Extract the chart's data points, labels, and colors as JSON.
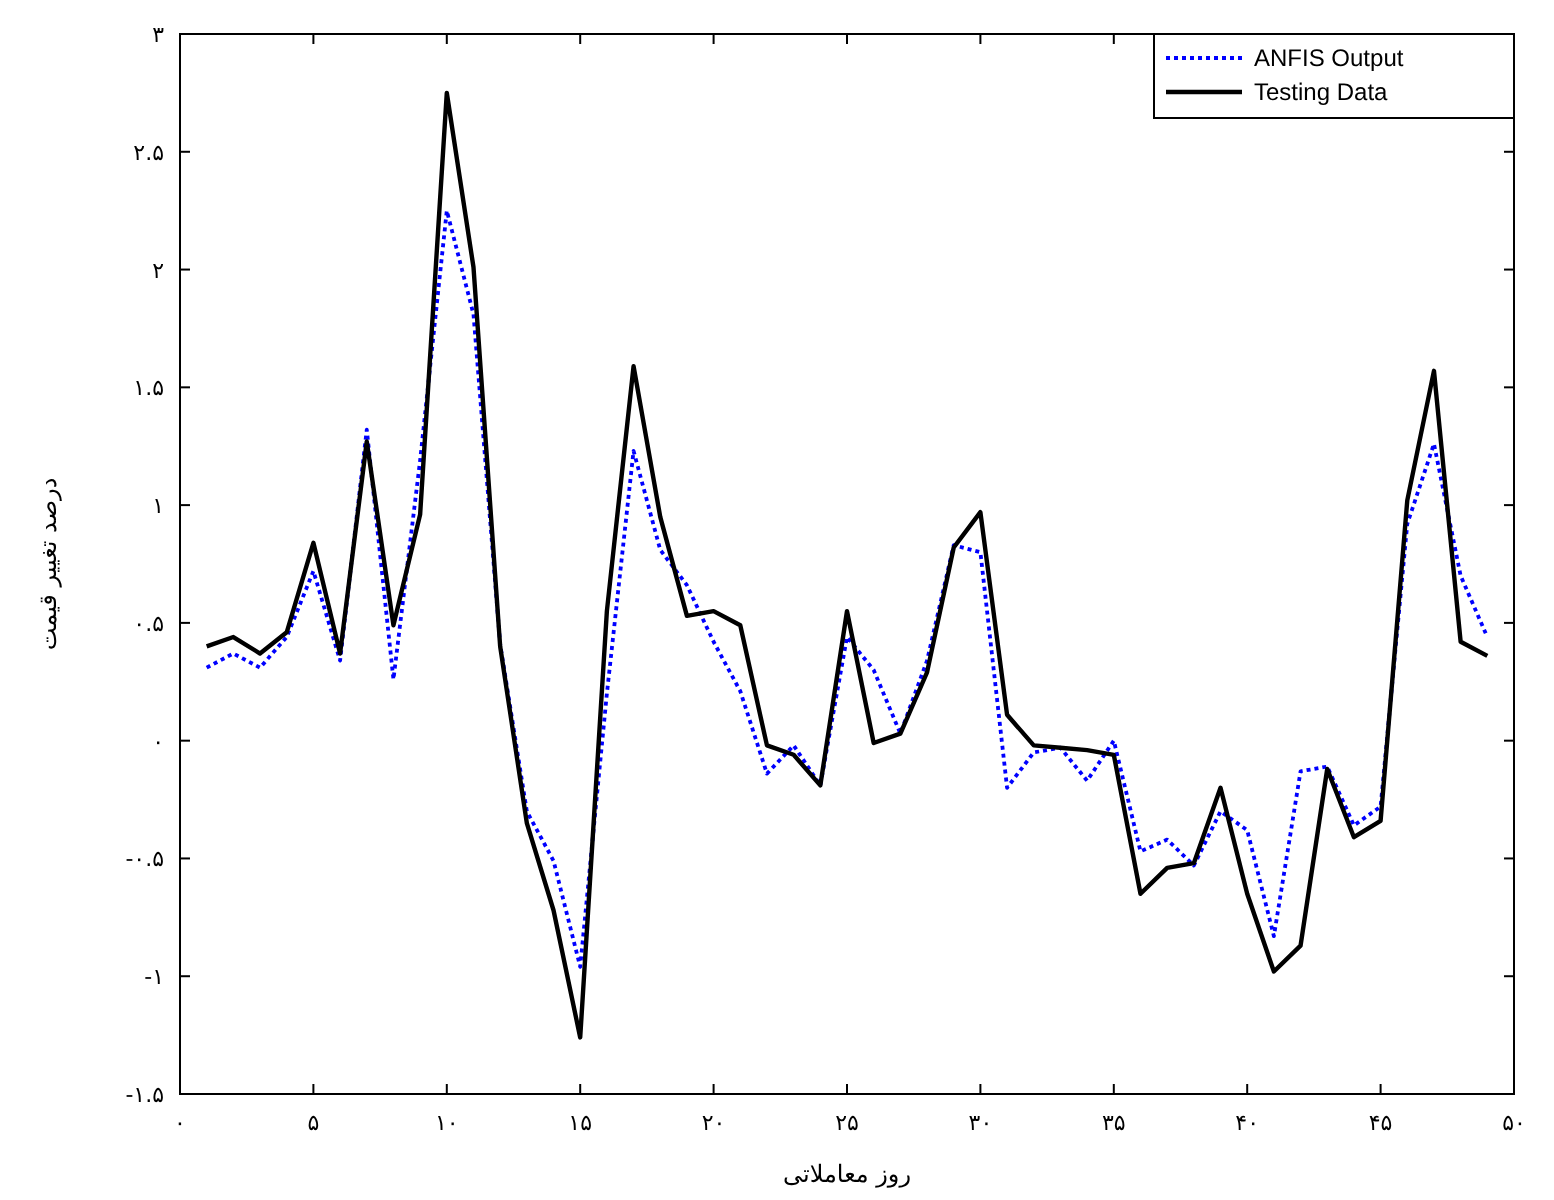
{
  "chart_data": {
    "type": "line",
    "xlabel": "روز معاملاتی",
    "ylabel": "درصد تغییر قیمت",
    "x": [
      1,
      2,
      3,
      4,
      5,
      6,
      7,
      8,
      9,
      10,
      11,
      12,
      13,
      14,
      15,
      16,
      17,
      18,
      19,
      20,
      21,
      22,
      23,
      24,
      25,
      26,
      27,
      28,
      29,
      30,
      31,
      32,
      33,
      34,
      35,
      36,
      37,
      38,
      39,
      40,
      41,
      42,
      43,
      44,
      45,
      46,
      47,
      48,
      49
    ],
    "series": [
      {
        "name": "ANFIS Output",
        "color": "#0000ff",
        "line_style": "dotted",
        "values": [
          0.31,
          0.37,
          0.31,
          0.44,
          0.72,
          0.34,
          1.32,
          0.26,
          1.19,
          2.25,
          1.81,
          0.41,
          -0.3,
          -0.51,
          -0.96,
          0.2,
          1.23,
          0.81,
          0.66,
          0.42,
          0.21,
          -0.14,
          -0.02,
          -0.19,
          0.44,
          0.3,
          0.03,
          0.34,
          0.83,
          0.8,
          -0.2,
          -0.05,
          -0.03,
          -0.17,
          0.0,
          -0.47,
          -0.42,
          -0.53,
          -0.3,
          -0.38,
          -0.83,
          -0.13,
          -0.11,
          -0.36,
          -0.28,
          0.92,
          1.26,
          0.7,
          0.44
        ]
      },
      {
        "name": "Testing Data",
        "color": "#000000",
        "line_style": "solid",
        "values": [
          0.4,
          0.44,
          0.37,
          0.46,
          0.84,
          0.37,
          1.27,
          0.49,
          0.96,
          2.75,
          2.01,
          0.4,
          -0.35,
          -0.72,
          -1.26,
          0.55,
          1.59,
          0.95,
          0.53,
          0.55,
          0.49,
          -0.02,
          -0.06,
          -0.19,
          0.55,
          -0.01,
          0.03,
          0.29,
          0.82,
          0.97,
          0.11,
          -0.02,
          -0.03,
          -0.04,
          -0.06,
          -0.65,
          -0.54,
          -0.52,
          -0.2,
          -0.65,
          -0.98,
          -0.87,
          -0.12,
          -0.41,
          -0.34,
          1.02,
          1.57,
          0.42,
          0.36
        ]
      }
    ],
    "xlim": [
      0,
      50
    ],
    "ylim": [
      -1.5,
      3
    ],
    "xticks": [
      {
        "value": 0,
        "label": "۰"
      },
      {
        "value": 5,
        "label": "۵"
      },
      {
        "value": 10,
        "label": "۱۰"
      },
      {
        "value": 15,
        "label": "۱۵"
      },
      {
        "value": 20,
        "label": "۲۰"
      },
      {
        "value": 25,
        "label": "۲۵"
      },
      {
        "value": 30,
        "label": "۳۰"
      },
      {
        "value": 35,
        "label": "۳۵"
      },
      {
        "value": 40,
        "label": "۴۰"
      },
      {
        "value": 45,
        "label": "۴۵"
      },
      {
        "value": 50,
        "label": "۵۰"
      }
    ],
    "yticks": [
      {
        "value": -1.5,
        "label": "-۱.۵"
      },
      {
        "value": -1,
        "label": "-۱"
      },
      {
        "value": -0.5,
        "label": "-۰.۵"
      },
      {
        "value": 0,
        "label": "۰"
      },
      {
        "value": 0.5,
        "label": "۰.۵"
      },
      {
        "value": 1,
        "label": "۱"
      },
      {
        "value": 1.5,
        "label": "۱.۵"
      },
      {
        "value": 2,
        "label": "۲"
      },
      {
        "value": 2.5,
        "label": "۲.۵"
      },
      {
        "value": 3,
        "label": "۳"
      }
    ],
    "grid": false,
    "legend": "top right"
  }
}
